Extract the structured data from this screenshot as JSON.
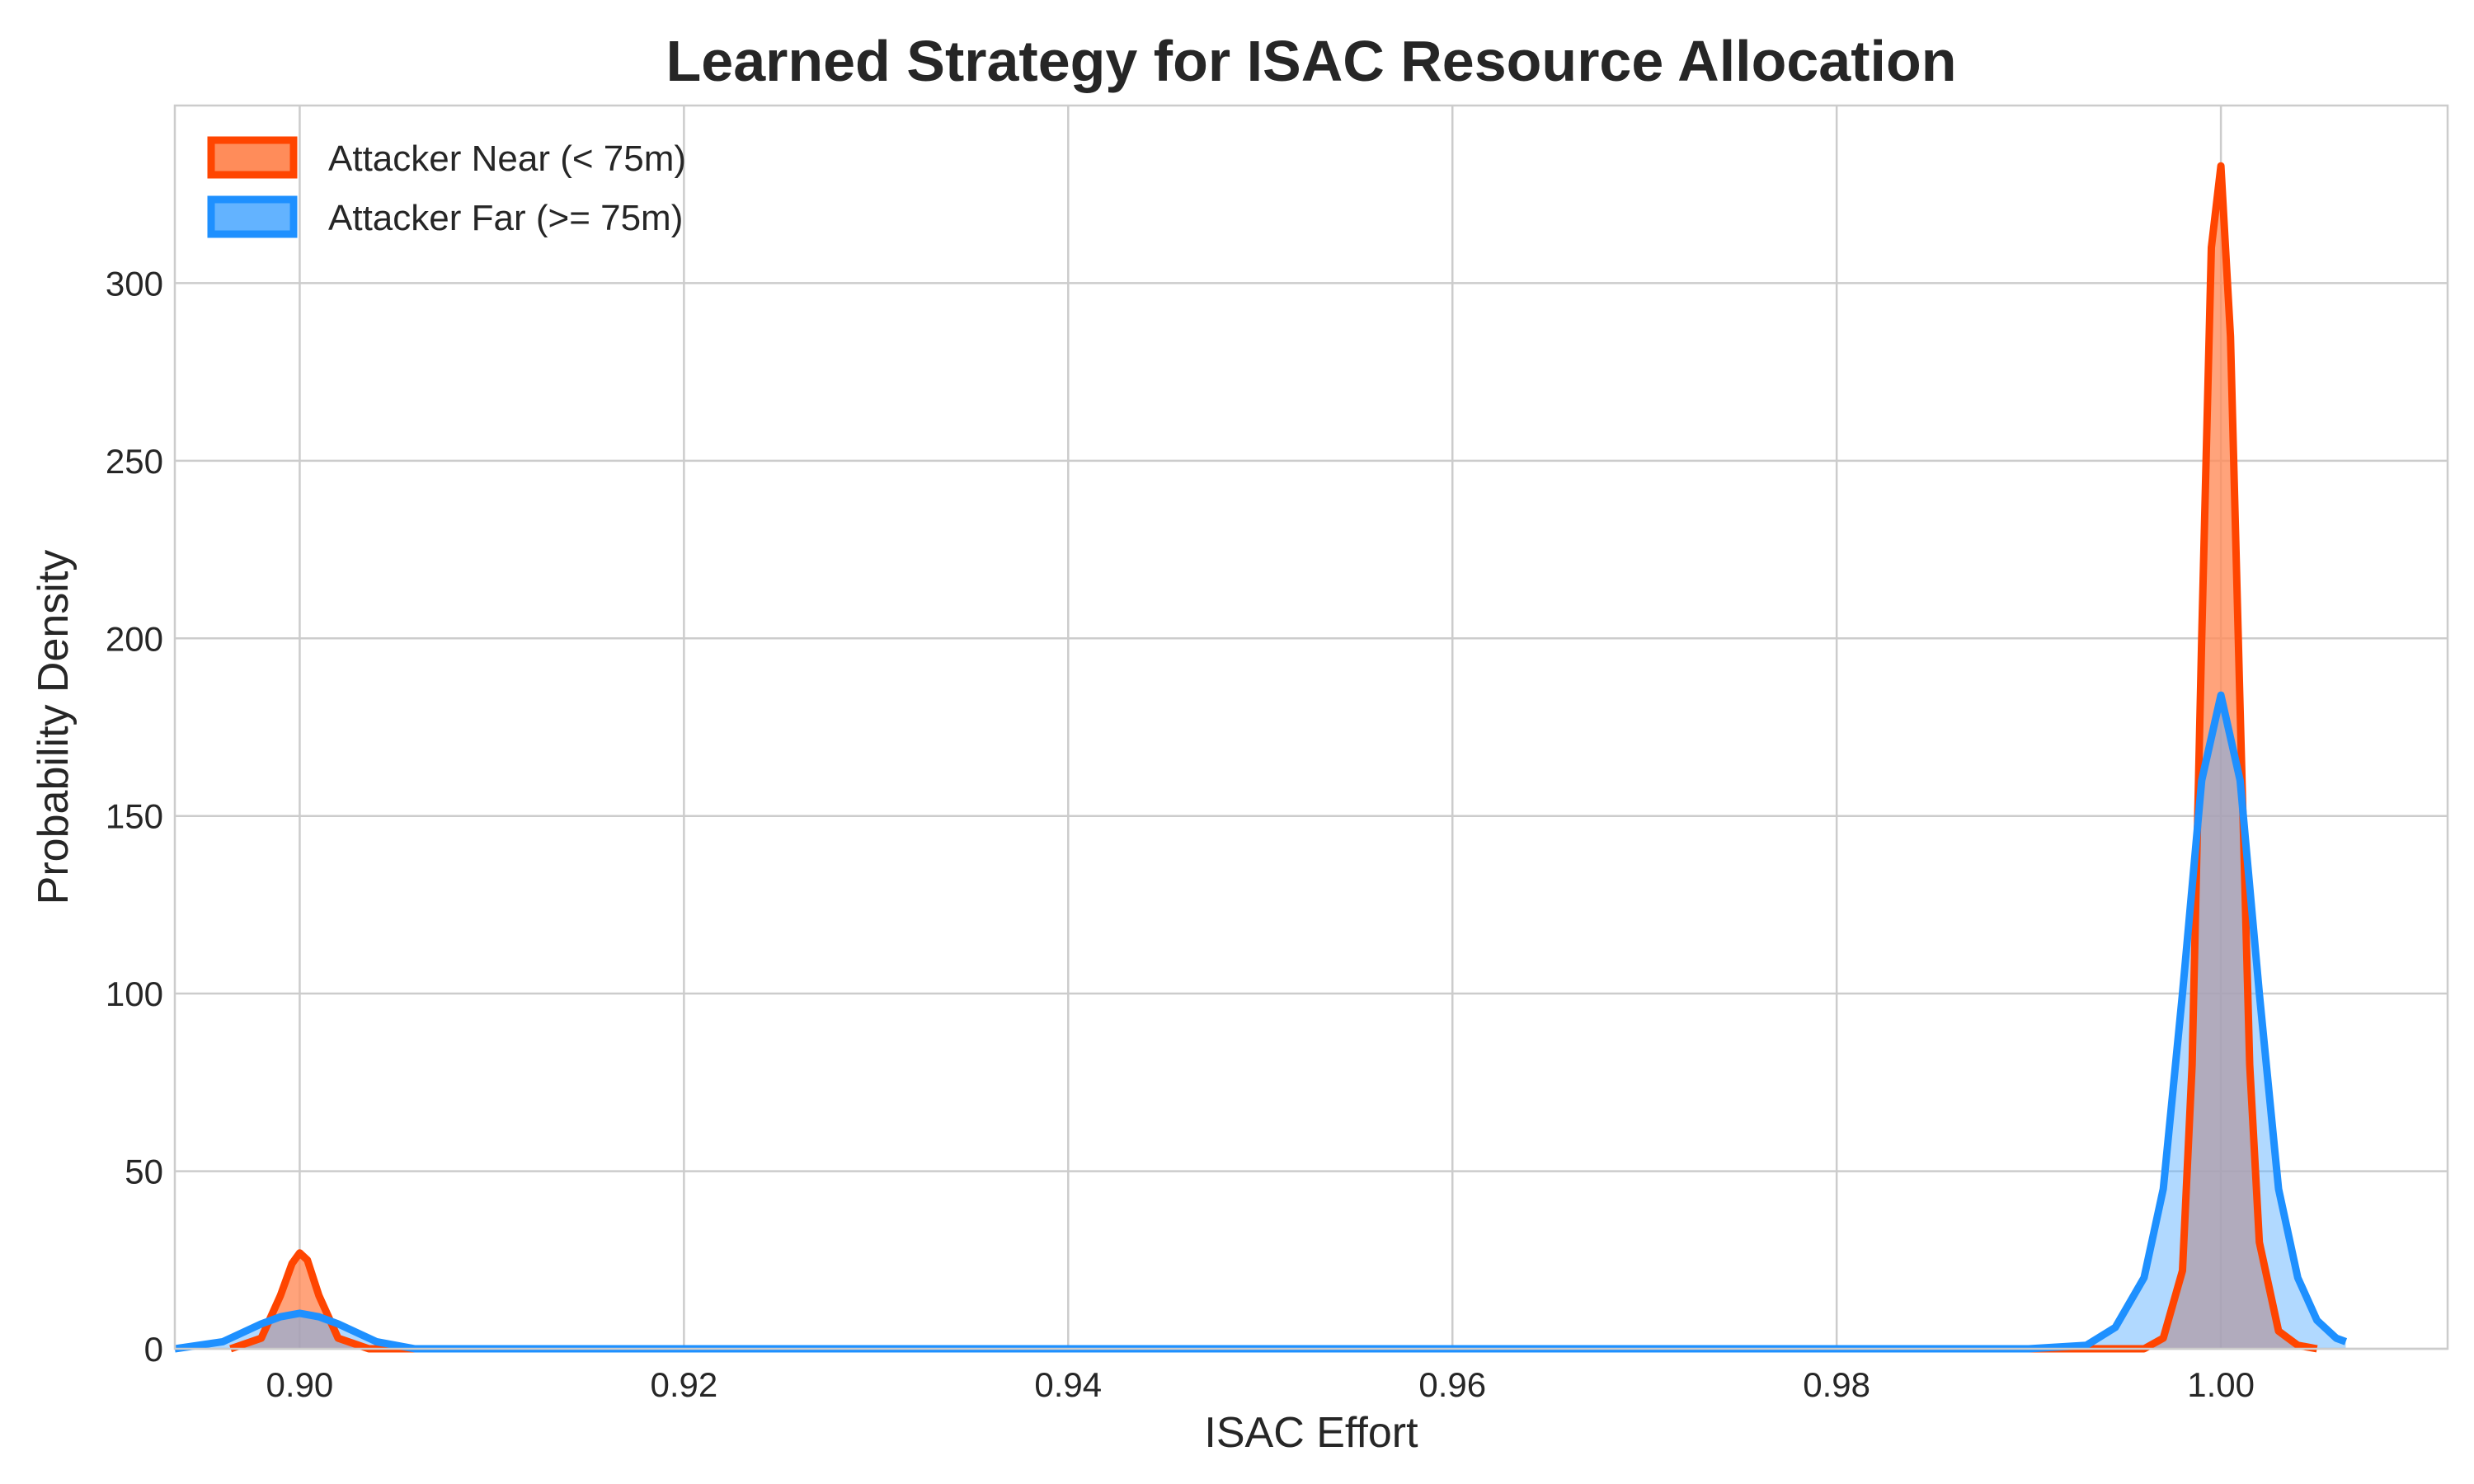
{
  "chart_data": {
    "type": "area",
    "title": "Learned Strategy for ISAC Resource Allocation",
    "xlabel": "ISAC Effort",
    "ylabel": "Probability Density",
    "xlim": [
      0.8935,
      1.0118
    ],
    "ylim": [
      0,
      350
    ],
    "xticks": [
      0.9,
      0.92,
      0.94,
      0.96,
      0.98,
      1.0
    ],
    "xtick_labels": [
      "0.90",
      "0.92",
      "0.94",
      "0.96",
      "0.98",
      "1.00"
    ],
    "yticks": [
      0,
      50,
      100,
      150,
      200,
      250,
      300
    ],
    "ytick_labels": [
      "0",
      "50",
      "100",
      "150",
      "200",
      "250",
      "300"
    ],
    "grid": true,
    "legend_position": "top-left",
    "series": [
      {
        "name": "Attacker Near (< 75m)",
        "line_color": "#ff4500",
        "fill_color": "#ff8c5a",
        "x": [
          0.8964,
          0.898,
          0.899,
          0.8996,
          0.9,
          0.9004,
          0.901,
          0.902,
          0.9036,
          0.904,
          0.996,
          0.997,
          0.998,
          0.9985,
          0.999,
          0.9995,
          1.0,
          1.0005,
          1.001,
          1.0015,
          1.002,
          1.003,
          1.004,
          1.005
        ],
        "y": [
          0,
          3,
          15,
          24,
          27,
          25,
          15,
          3,
          0,
          0,
          0,
          3,
          22,
          80,
          200,
          310,
          333,
          285,
          180,
          80,
          30,
          5,
          1,
          0
        ]
      },
      {
        "name": "Attacker Far (>= 75m)",
        "line_color": "#1e90ff",
        "fill_color": "#63b3ff",
        "x": [
          0.8935,
          0.896,
          0.898,
          0.899,
          0.9,
          0.901,
          0.902,
          0.904,
          0.906,
          0.91,
          0.95,
          0.99,
          0.993,
          0.9945,
          0.996,
          0.997,
          0.998,
          0.999,
          1.0,
          1.001,
          1.002,
          1.003,
          1.004,
          1.005,
          1.006,
          1.0065
        ],
        "y": [
          0,
          2,
          7,
          9,
          10,
          9,
          7,
          2,
          0,
          0,
          0,
          0,
          1,
          6,
          20,
          45,
          100,
          160,
          184,
          160,
          100,
          45,
          20,
          8,
          3,
          2
        ]
      }
    ]
  }
}
